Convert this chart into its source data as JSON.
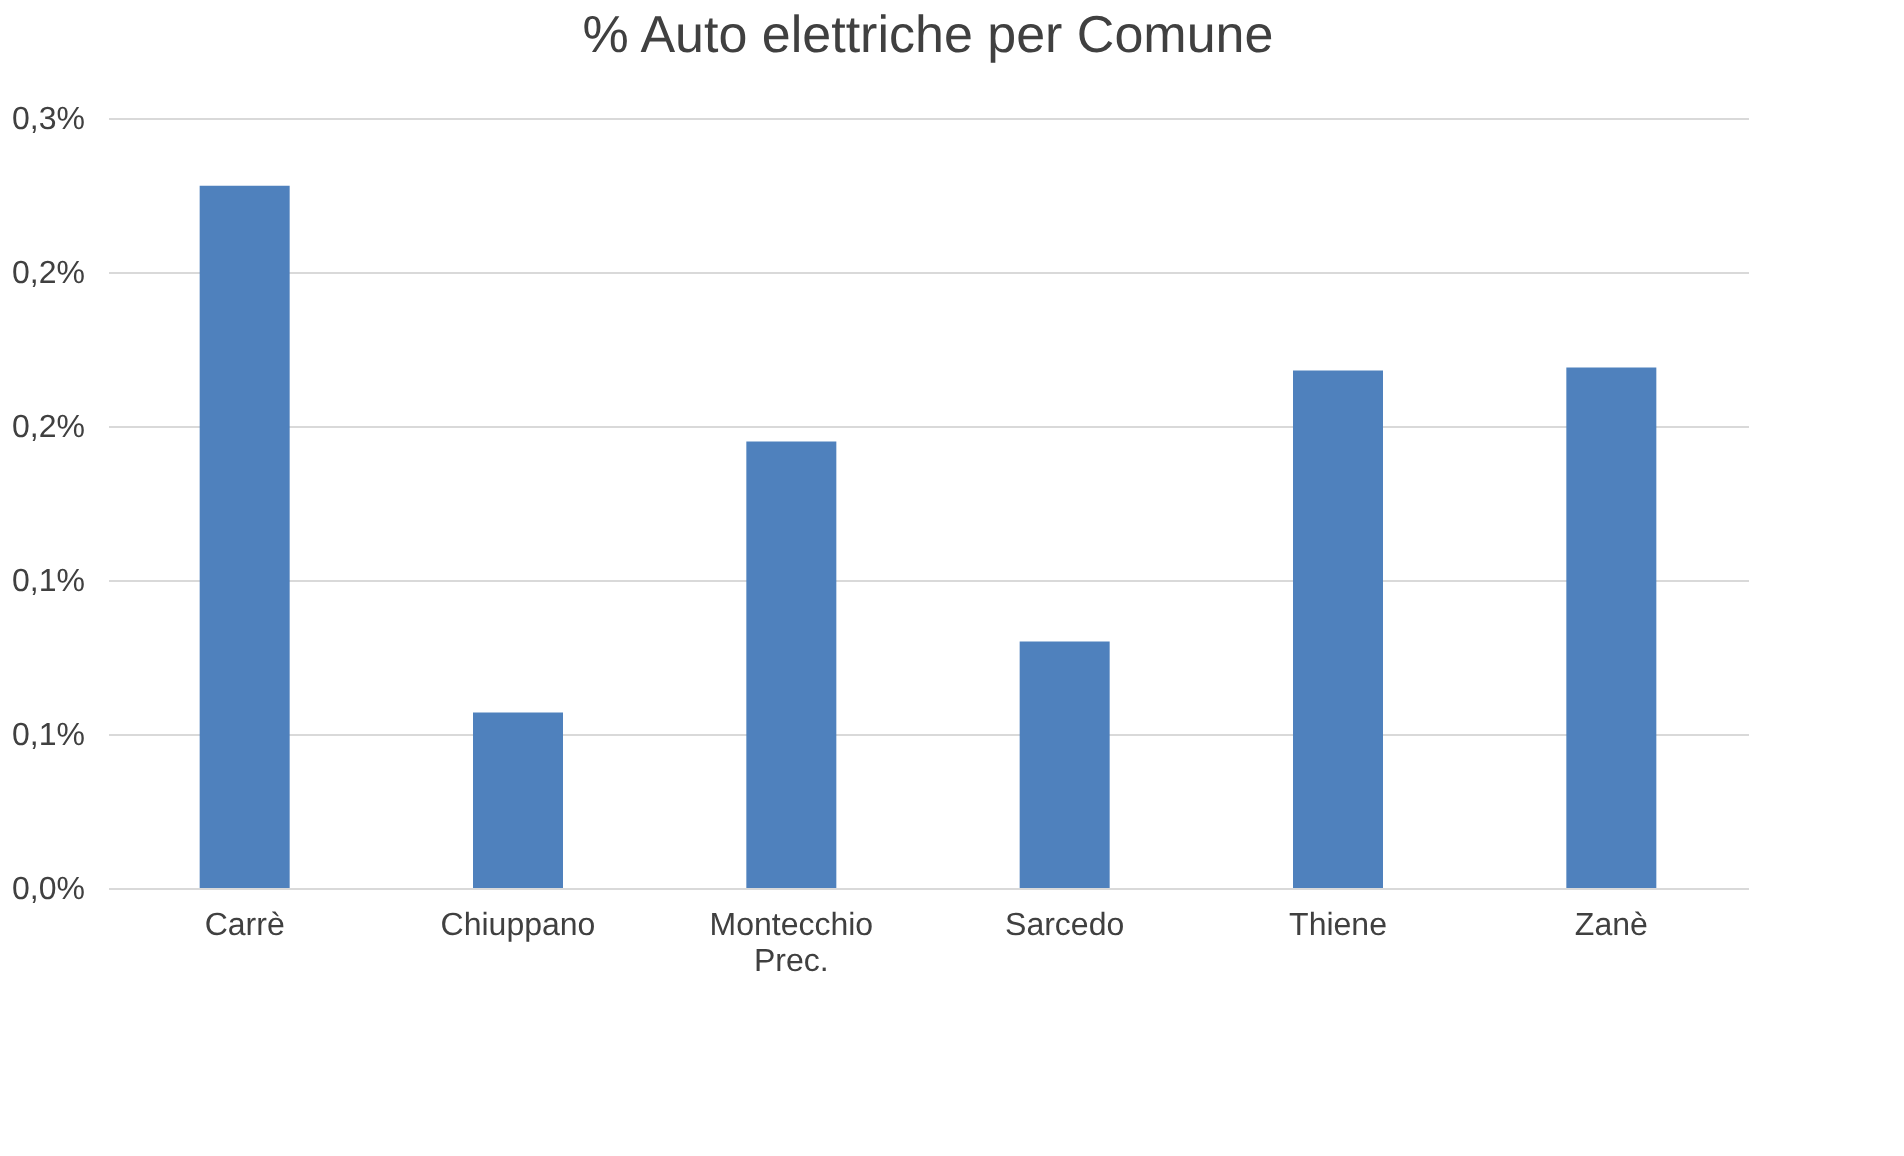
{
  "chart_data": {
    "type": "bar",
    "title": "% Auto elettriche per Comune",
    "categories": [
      "Carrè",
      "Chiuppano",
      "Montecchio Prec.",
      "Sarcedo",
      "Thiene",
      "Zanè"
    ],
    "series": [
      {
        "color": "#4f81bd",
        "values": [
          0.228,
          0.057,
          0.145,
          0.08,
          0.168,
          0.169
        ]
      }
    ],
    "ylim": [
      0,
      0.25
    ],
    "yticks": [
      {
        "value": 0,
        "label": "0,0%"
      },
      {
        "value": 0.05,
        "label": "0,1%"
      },
      {
        "value": 0.1,
        "label": "0,1%"
      },
      {
        "value": 0.15,
        "label": "0,2%"
      },
      {
        "value": 0.2,
        "label": "0,2%"
      },
      {
        "value": 0.25,
        "label": "0,3%"
      }
    ],
    "grid": "y",
    "legend": false
  }
}
